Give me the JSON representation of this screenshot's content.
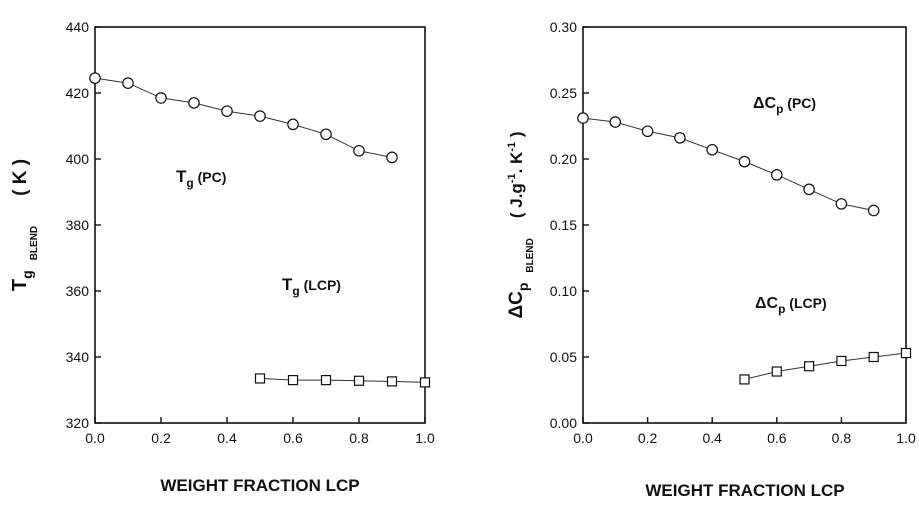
{
  "chart_data": [
    {
      "type": "scatter",
      "xlabel": "WEIGHT FRACTION LCP",
      "ylabel": {
        "main": "T",
        "sub": "g",
        "subsub": "BLEND",
        "unit": "( K )"
      },
      "xlim": [
        0.0,
        1.0
      ],
      "ylim": [
        320,
        440
      ],
      "xticks": [
        "0.0",
        "0.2",
        "0.4",
        "0.6",
        "0.8",
        "1.0"
      ],
      "yticks": [
        "320",
        "340",
        "360",
        "380",
        "400",
        "420",
        "440"
      ],
      "grid": false,
      "series": [
        {
          "label": {
            "main": "T",
            "sub": "g",
            "rest": " (PC)"
          },
          "marker": "circle",
          "x": [
            0.0,
            0.1,
            0.2,
            0.3,
            0.4,
            0.5,
            0.6,
            0.7,
            0.8,
            0.9
          ],
          "y": [
            424.5,
            423,
            418.5,
            417,
            414.5,
            413,
            410.5,
            407.5,
            402.5,
            400.5
          ]
        },
        {
          "label": {
            "main": "T",
            "sub": "g",
            "rest": " (LCP)"
          },
          "marker": "square",
          "x": [
            0.5,
            0.6,
            0.7,
            0.8,
            0.9,
            1.0
          ],
          "y": [
            333.5,
            333,
            333,
            332.8,
            332.6,
            332.3
          ]
        }
      ]
    },
    {
      "type": "scatter",
      "xlabel": "WEIGHT FRACTION LCP",
      "ylabel": {
        "main": "ΔC",
        "sub": "p",
        "subsub": "BLEND",
        "unit_pre": "( J.g",
        "unit_sup1": "-1",
        "unit_mid": ". K",
        "unit_sup2": "-1",
        "unit_post": " )"
      },
      "xlim": [
        0.0,
        1.0
      ],
      "ylim": [
        0.0,
        0.3
      ],
      "xticks": [
        "0.0",
        "0.2",
        "0.4",
        "0.6",
        "0.8",
        "1.0"
      ],
      "yticks": [
        "0.00",
        "0.05",
        "0.10",
        "0.15",
        "0.20",
        "0.25",
        "0.30"
      ],
      "grid": false,
      "series": [
        {
          "label": {
            "main": "ΔC",
            "sub": "p",
            "rest": " (PC)"
          },
          "marker": "circle",
          "x": [
            0.0,
            0.1,
            0.2,
            0.3,
            0.4,
            0.5,
            0.6,
            0.7,
            0.8,
            0.9
          ],
          "y": [
            0.231,
            0.228,
            0.221,
            0.216,
            0.207,
            0.198,
            0.188,
            0.177,
            0.166,
            0.161
          ]
        },
        {
          "label": {
            "main": "ΔC",
            "sub": "p",
            "rest": " (LCP)"
          },
          "marker": "square",
          "x": [
            0.5,
            0.6,
            0.7,
            0.8,
            0.9,
            1.0
          ],
          "y": [
            0.033,
            0.039,
            0.043,
            0.047,
            0.05,
            0.053
          ]
        }
      ]
    }
  ]
}
